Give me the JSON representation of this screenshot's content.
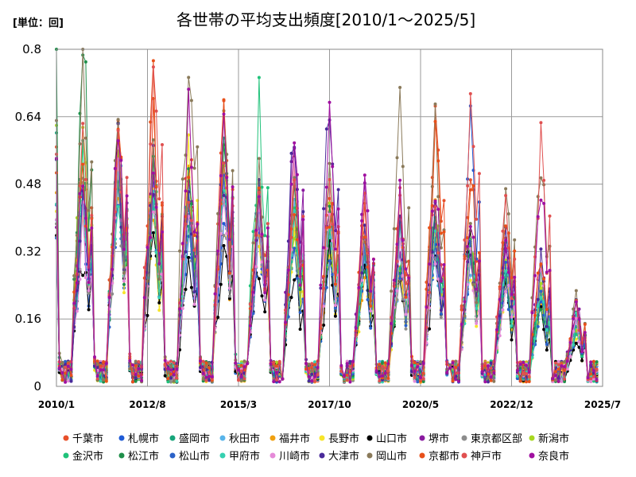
{
  "chart_data": {
    "type": "line",
    "title": "各世帯の平均支出頻度[2010/1～2025/5]",
    "unit_label": "[単位：回]",
    "xlabel": "",
    "ylabel": "",
    "x_range": [
      "2010/1",
      "2025/7"
    ],
    "x_tick_labels": [
      "2010/1",
      "2012/8",
      "2015/3",
      "2017/10",
      "2020/5",
      "2022/12",
      "2025/7"
    ],
    "ylim": [
      0,
      0.8
    ],
    "y_tick_labels": [
      "0",
      "0.16",
      "0.32",
      "0.48",
      "0.64",
      "0.8"
    ],
    "y_ticks": [
      0,
      0.16,
      0.32,
      0.48,
      0.64,
      0.8
    ],
    "grid": true,
    "legend_position": "bottom",
    "series": [
      {
        "name": "千葉市",
        "color": "#e8502a",
        "peaks": [
          0.57,
          0.62,
          0.6,
          0.53,
          0.6,
          0.48,
          0.48,
          0.47,
          0.4,
          0.42,
          0.62,
          0.5,
          0.35,
          0.28,
          0.18
        ]
      },
      {
        "name": "札幌市",
        "color": "#1f5bd6",
        "peaks": [
          0.4,
          0.5,
          0.45,
          0.4,
          0.42,
          0.38,
          0.36,
          0.35,
          0.3,
          0.33,
          0.35,
          0.57,
          0.28,
          0.22,
          0.14
        ]
      },
      {
        "name": "盛岡市",
        "color": "#17a57a",
        "peaks": [
          0.52,
          0.58,
          0.5,
          0.45,
          0.55,
          0.42,
          0.4,
          0.4,
          0.35,
          0.34,
          0.4,
          0.34,
          0.3,
          0.24,
          0.16
        ]
      },
      {
        "name": "秋田市",
        "color": "#58b4ea",
        "peaks": [
          0.45,
          0.55,
          0.48,
          0.42,
          0.5,
          0.42,
          0.38,
          0.35,
          0.32,
          0.3,
          0.33,
          0.32,
          0.26,
          0.22,
          0.14
        ]
      },
      {
        "name": "福井市",
        "color": "#f0a010",
        "peaks": [
          0.48,
          0.52,
          0.45,
          0.47,
          0.45,
          0.4,
          0.39,
          0.36,
          0.3,
          0.31,
          0.38,
          0.33,
          0.27,
          0.21,
          0.15
        ]
      },
      {
        "name": "長野市",
        "color": "#f7e52a",
        "peaks": [
          0.4,
          0.44,
          0.4,
          0.56,
          0.4,
          0.38,
          0.35,
          0.33,
          0.28,
          0.3,
          0.36,
          0.3,
          0.25,
          0.2,
          0.13
        ]
      },
      {
        "name": "山口市",
        "color": "#000000",
        "peaks": [
          0.32,
          0.55,
          0.33,
          0.3,
          0.35,
          0.3,
          0.3,
          0.32,
          0.26,
          0.28,
          0.3,
          0.36,
          0.24,
          0.18,
          0.12
        ]
      },
      {
        "name": "堺市",
        "color": "#8a1aa0",
        "peaks": [
          0.45,
          0.5,
          0.55,
          0.5,
          0.48,
          0.45,
          0.58,
          0.48,
          0.46,
          0.36,
          0.4,
          0.35,
          0.35,
          0.3,
          0.2
        ]
      },
      {
        "name": "東京都区部",
        "color": "#8c8c8c",
        "peaks": [
          0.42,
          0.48,
          0.45,
          0.44,
          0.4,
          0.4,
          0.38,
          0.37,
          0.32,
          0.3,
          0.34,
          0.32,
          0.28,
          0.24,
          0.15
        ]
      },
      {
        "name": "新潟市",
        "color": "#a8d820",
        "peaks": [
          0.62,
          0.55,
          0.5,
          0.48,
          0.5,
          0.42,
          0.4,
          0.38,
          0.33,
          0.32,
          0.4,
          0.34,
          0.28,
          0.23,
          0.16
        ]
      },
      {
        "name": "金沢市",
        "color": "#20c27a",
        "peaks": [
          0.5,
          0.52,
          0.5,
          0.5,
          0.52,
          0.65,
          0.42,
          0.4,
          0.35,
          0.33,
          0.38,
          0.33,
          0.28,
          0.22,
          0.15
        ]
      },
      {
        "name": "松江市",
        "color": "#1f8f4a",
        "peaks": [
          0.8,
          0.52,
          0.48,
          0.45,
          0.58,
          0.42,
          0.42,
          0.4,
          0.33,
          0.32,
          0.38,
          0.34,
          0.3,
          0.22,
          0.15
        ]
      },
      {
        "name": "松山市",
        "color": "#2b62c8",
        "peaks": [
          0.4,
          0.48,
          0.42,
          0.4,
          0.44,
          0.38,
          0.36,
          0.35,
          0.3,
          0.31,
          0.34,
          0.32,
          0.27,
          0.21,
          0.14
        ]
      },
      {
        "name": "甲府市",
        "color": "#35d0b0",
        "peaks": [
          0.45,
          0.5,
          0.46,
          0.44,
          0.5,
          0.46,
          0.4,
          0.38,
          0.33,
          0.33,
          0.4,
          0.33,
          0.28,
          0.22,
          0.15
        ]
      },
      {
        "name": "川崎市",
        "color": "#e58ad8",
        "peaks": [
          0.38,
          0.46,
          0.44,
          0.4,
          0.42,
          0.4,
          0.46,
          0.36,
          0.36,
          0.3,
          0.34,
          0.3,
          0.26,
          0.33,
          0.14
        ]
      },
      {
        "name": "大津市",
        "color": "#4a2a9a",
        "peaks": [
          0.48,
          0.55,
          0.52,
          0.48,
          0.52,
          0.48,
          0.6,
          0.69,
          0.4,
          0.35,
          0.38,
          0.34,
          0.34,
          0.3,
          0.18
        ]
      },
      {
        "name": "岡山市",
        "color": "#8a7a5a",
        "peaks": [
          0.75,
          0.58,
          0.5,
          0.8,
          0.64,
          0.54,
          0.46,
          0.5,
          0.38,
          0.62,
          0.62,
          0.35,
          0.47,
          0.51,
          0.2
        ]
      },
      {
        "name": "京都市",
        "color": "#e8501a",
        "peaks": [
          0.55,
          0.58,
          0.7,
          0.57,
          0.58,
          0.48,
          0.48,
          0.45,
          0.42,
          0.4,
          0.62,
          0.5,
          0.43,
          0.34,
          0.18
        ]
      },
      {
        "name": "神戸市",
        "color": "#e05050",
        "peaks": [
          0.55,
          0.6,
          0.73,
          0.53,
          0.55,
          0.48,
          0.5,
          0.5,
          0.4,
          0.42,
          0.45,
          0.62,
          0.4,
          0.57,
          0.18
        ]
      },
      {
        "name": "奈良市",
        "color": "#a010a0",
        "peaks": [
          0.5,
          0.6,
          0.52,
          0.62,
          0.58,
          0.48,
          0.52,
          0.6,
          0.46,
          0.44,
          0.5,
          0.4,
          0.34,
          0.45,
          0.18
        ]
      }
    ]
  }
}
